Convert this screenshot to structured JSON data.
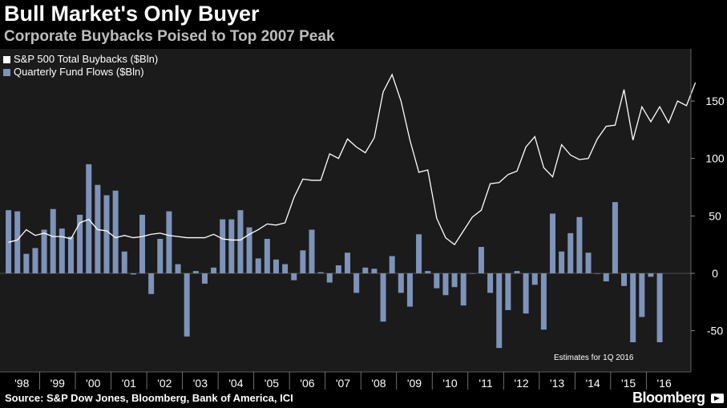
{
  "header": {
    "title": "Bull Market's Only Buyer",
    "subtitle": "Corporate Buybacks Poised to Top 2007 Peak"
  },
  "legend": {
    "line_label": "S&P 500 Total Buybacks ($Bln)",
    "bar_label": "Quarterly Fund Flows ($Bln)"
  },
  "note": "Estimates for 1Q 2016",
  "footer": {
    "source": "Source: S&P Dow Jones, Bloomberg, Bank of America, ICI",
    "brand": "Bloomberg"
  },
  "colors": {
    "background": "#1b1b1b",
    "line": "#ffffff",
    "bar": "#7d93b9",
    "grid": "#4a4a4a"
  },
  "chart_data": {
    "type": "bar+line",
    "x_tick_labels": [
      "'98",
      "'99",
      "'00",
      "'01",
      "'02",
      "'03",
      "'04",
      "'05",
      "'06",
      "'07",
      "'08",
      "'09",
      "'10",
      "'11",
      "'12",
      "'13",
      "'14",
      "'15",
      "'16"
    ],
    "ylim": [
      -75,
      185
    ],
    "y_ticks": [
      150,
      100,
      50,
      0,
      -50
    ],
    "y_tick_labels": [
      "150",
      "100",
      "50",
      "0",
      "-50"
    ],
    "grid": false,
    "legend_position": "top-left",
    "quarters_start": "1998 Q1",
    "series": [
      {
        "name": "Quarterly Fund Flows ($Bln)",
        "type": "bar",
        "values": [
          55,
          54,
          17,
          22,
          38,
          56,
          39,
          32,
          51,
          95,
          77,
          68,
          72,
          19,
          -1,
          51,
          -18,
          30,
          54,
          8,
          -55,
          2,
          -9,
          5,
          47,
          47,
          55,
          40,
          13,
          30,
          12,
          8,
          -6,
          20,
          38,
          1,
          -8,
          7,
          18,
          -17,
          5,
          4,
          -42,
          15,
          -17,
          -29,
          34,
          2,
          -13,
          -19,
          -12,
          -28,
          0,
          23,
          -17,
          -65,
          -32,
          2,
          -35,
          -10,
          -49,
          52,
          19,
          35,
          49,
          18,
          0,
          -7,
          62,
          -11,
          -60,
          -38,
          -3,
          -60
        ]
      },
      {
        "name": "S&P 500 Total Buybacks ($Bln)",
        "type": "line",
        "values": [
          27,
          29,
          38,
          33,
          35,
          32,
          32,
          30,
          44,
          47,
          38,
          37,
          31,
          33,
          31,
          32,
          34,
          35,
          33,
          32,
          31,
          31,
          31,
          34,
          30,
          29,
          29,
          34,
          38,
          43,
          42,
          44,
          66,
          82,
          81,
          81,
          104,
          100,
          117,
          110,
          105,
          118,
          158,
          173,
          150,
          116,
          88,
          90,
          48,
          31,
          25,
          37,
          49,
          55,
          78,
          79,
          86,
          89,
          110,
          119,
          92,
          84,
          112,
          103,
          99,
          100,
          117,
          128,
          129,
          160,
          116,
          145,
          132,
          145,
          131,
          150,
          146,
          166
        ]
      }
    ]
  }
}
